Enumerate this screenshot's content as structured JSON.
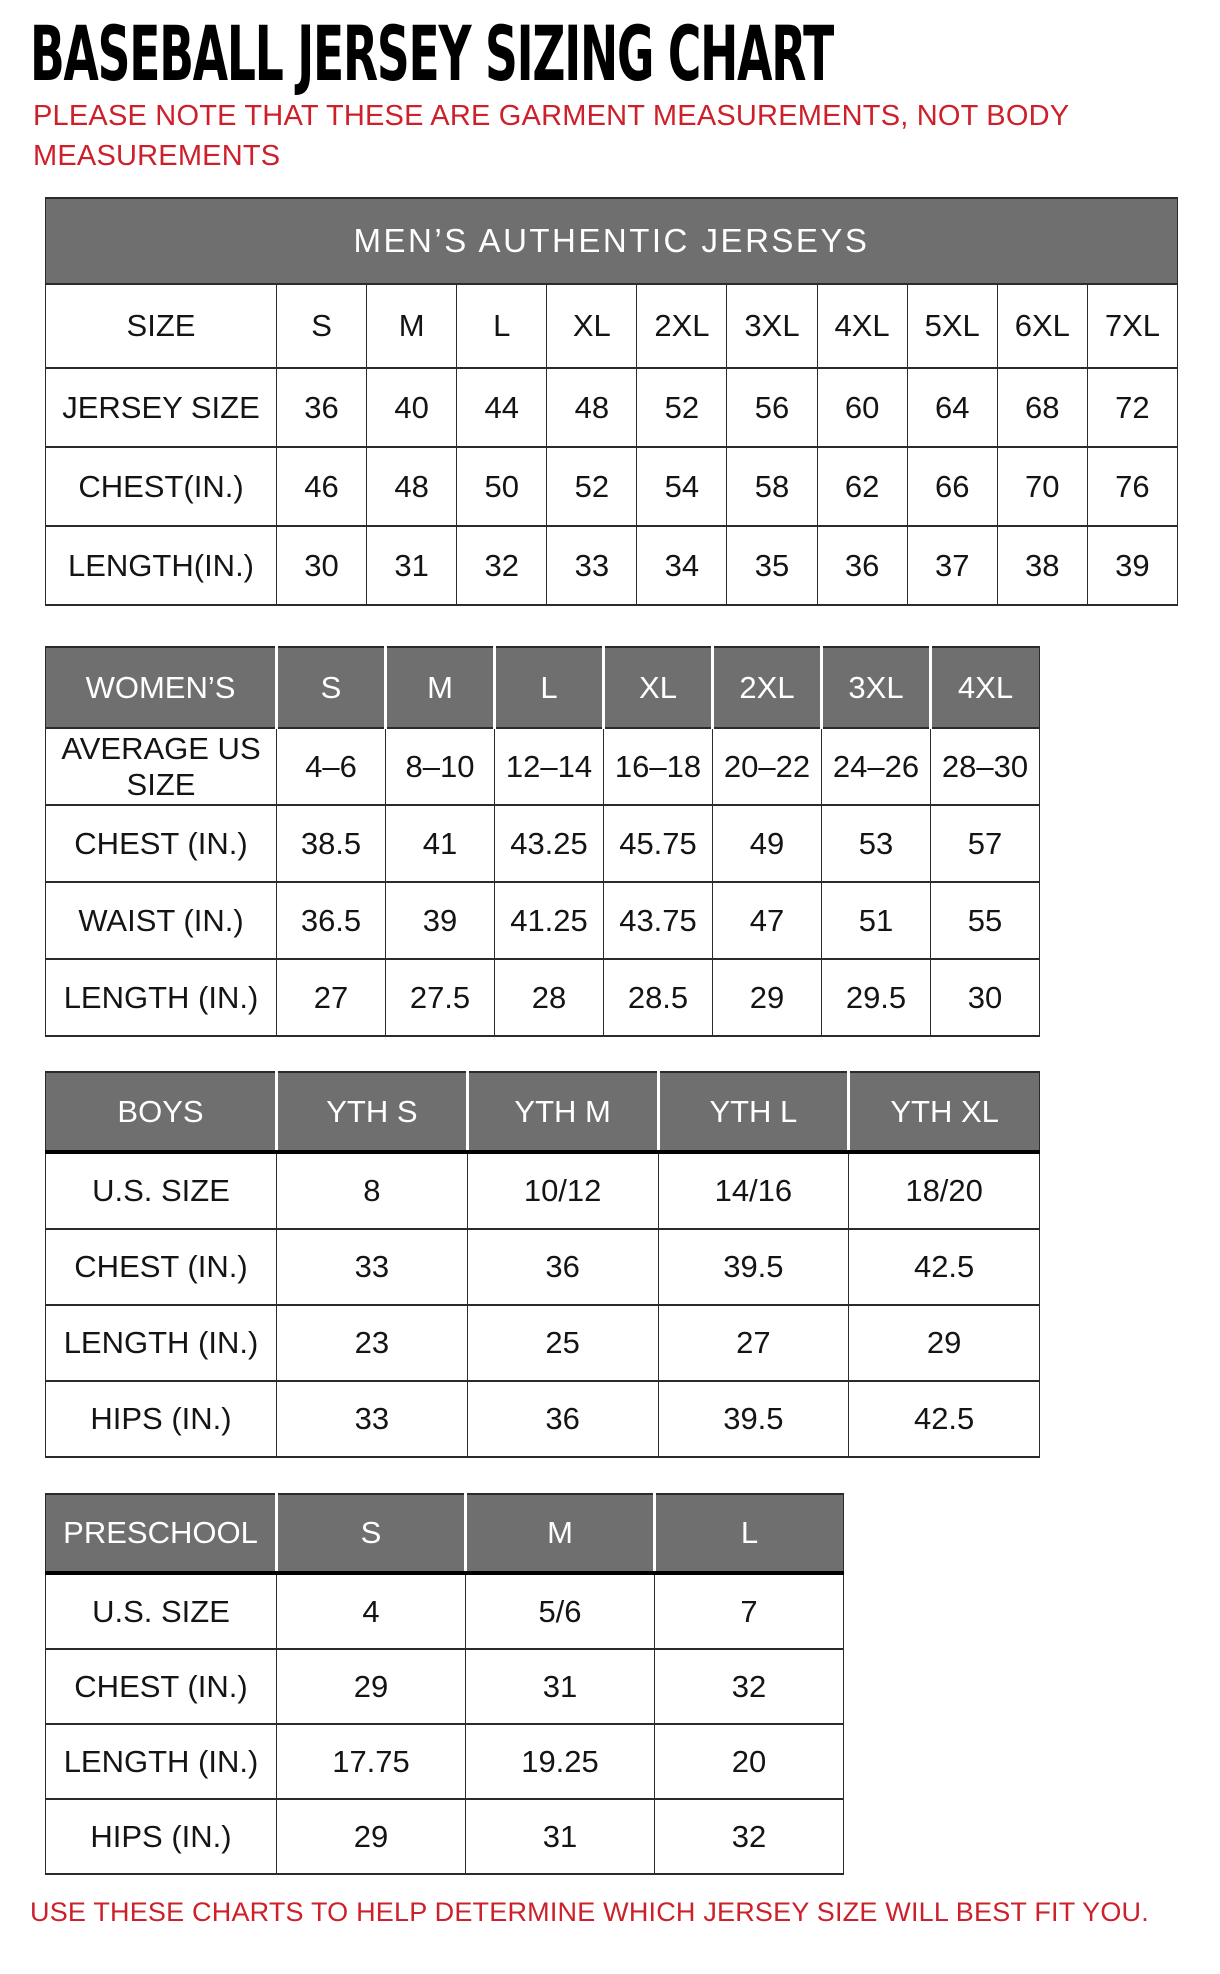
{
  "page": {
    "title": "BASEBALL JERSEY SIZING CHART",
    "note": "PLEASE NOTE THAT THESE ARE GARMENT MEASUREMENTS, NOT BODY MEASUREMENTS",
    "footer": "USE THESE CHARTS TO HELP DETERMINE WHICH JERSEY SIZE WILL BEST FIT YOU."
  },
  "colors": {
    "header_gray": "#6f6f6f",
    "accent_red": "#cd202a",
    "text_black": "#141414",
    "border": "#2b2b2b"
  },
  "tables": {
    "mens": {
      "banner": "MEN’S AUTHENTIC JERSEYS",
      "size_label": "SIZE",
      "sizes": [
        "S",
        "M",
        "L",
        "XL",
        "2XL",
        "3XL",
        "4XL",
        "5XL",
        "6XL",
        "7XL"
      ],
      "rows": [
        {
          "label": "JERSEY SIZE",
          "values": [
            "36",
            "40",
            "44",
            "48",
            "52",
            "56",
            "60",
            "64",
            "68",
            "72"
          ]
        },
        {
          "label": "CHEST(IN.)",
          "values": [
            "46",
            "48",
            "50",
            "52",
            "54",
            "58",
            "62",
            "66",
            "70",
            "76"
          ]
        },
        {
          "label": "LENGTH(IN.)",
          "values": [
            "30",
            "31",
            "32",
            "33",
            "34",
            "35",
            "36",
            "37",
            "38",
            "39"
          ]
        }
      ]
    },
    "womens": {
      "header_label": "WOMEN’S",
      "sizes": [
        "S",
        "M",
        "L",
        "XL",
        "2XL",
        "3XL",
        "4XL"
      ],
      "rows": [
        {
          "label": "AVERAGE US SIZE",
          "values": [
            "4–6",
            "8–10",
            "12–14",
            "16–18",
            "20–22",
            "24–26",
            "28–30"
          ]
        },
        {
          "label": "CHEST (IN.)",
          "values": [
            "38.5",
            "41",
            "43.25",
            "45.75",
            "49",
            "53",
            "57"
          ]
        },
        {
          "label": "WAIST (IN.)",
          "values": [
            "36.5",
            "39",
            "41.25",
            "43.75",
            "47",
            "51",
            "55"
          ]
        },
        {
          "label": "LENGTH (IN.)",
          "values": [
            "27",
            "27.5",
            "28",
            "28.5",
            "29",
            "29.5",
            "30"
          ]
        }
      ]
    },
    "boys": {
      "header_label": "BOYS",
      "sizes": [
        "YTH S",
        "YTH M",
        "YTH L",
        "YTH XL"
      ],
      "rows": [
        {
          "label": "U.S. SIZE",
          "values": [
            "8",
            "10/12",
            "14/16",
            "18/20"
          ]
        },
        {
          "label": "CHEST (IN.)",
          "values": [
            "33",
            "36",
            "39.5",
            "42.5"
          ]
        },
        {
          "label": "LENGTH (IN.)",
          "values": [
            "23",
            "25",
            "27",
            "29"
          ]
        },
        {
          "label": "HIPS (IN.)",
          "values": [
            "33",
            "36",
            "39.5",
            "42.5"
          ]
        }
      ]
    },
    "preschool": {
      "header_label": "PRESCHOOL",
      "sizes": [
        "S",
        "M",
        "L"
      ],
      "rows": [
        {
          "label": "U.S. SIZE",
          "values": [
            "4",
            "5/6",
            "7"
          ]
        },
        {
          "label": "CHEST (IN.)",
          "values": [
            "29",
            "31",
            "32"
          ]
        },
        {
          "label": "LENGTH (IN.)",
          "values": [
            "17.75",
            "19.25",
            "20"
          ]
        },
        {
          "label": "HIPS (IN.)",
          "values": [
            "29",
            "31",
            "32"
          ]
        }
      ]
    }
  }
}
